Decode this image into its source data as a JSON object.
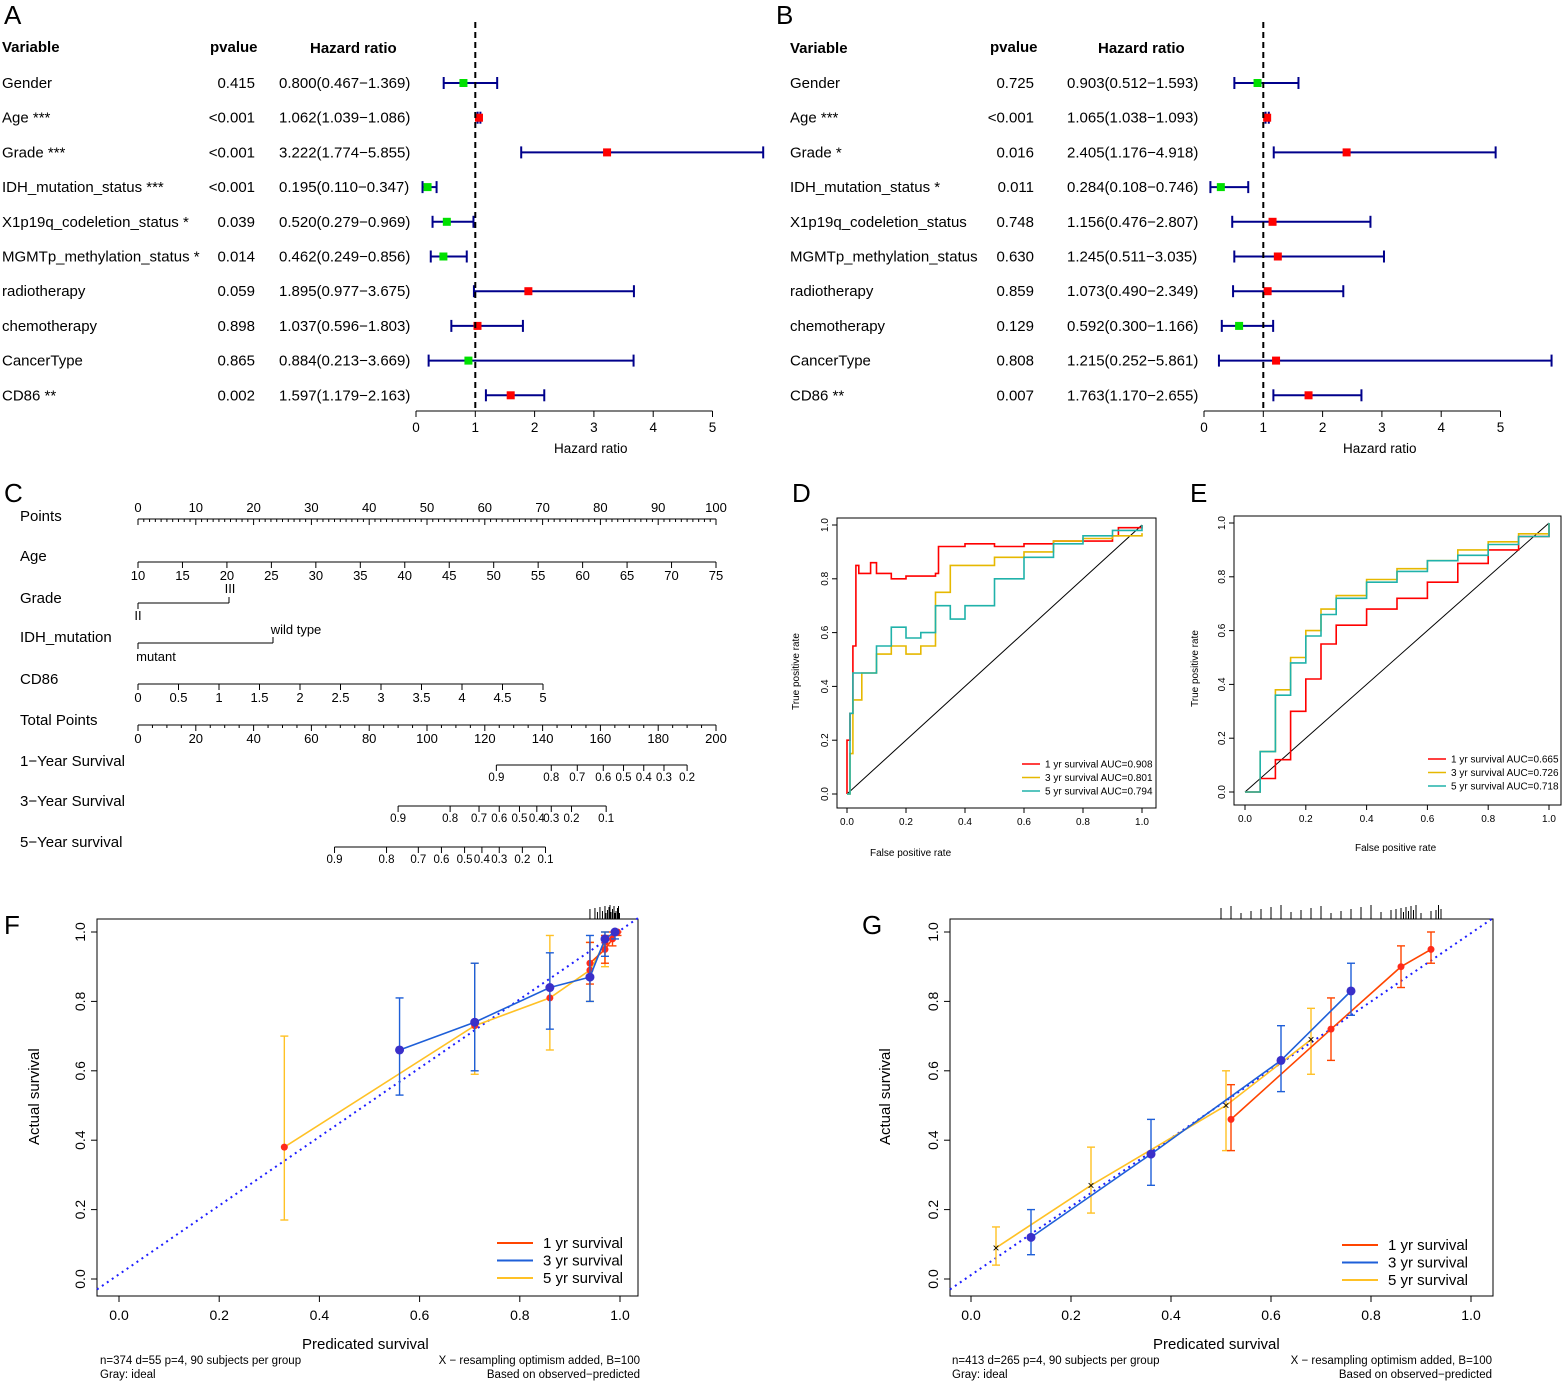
{
  "panels": {
    "A": {
      "letter": "A",
      "headers": [
        "Variable",
        "pvalue",
        "Hazard ratio"
      ],
      "xlabel": "Hazard ratio",
      "ticks": [
        0,
        1,
        2,
        3,
        4,
        5
      ],
      "rows": [
        {
          "name": "Gender",
          "p": "0.415",
          "hr_text": "0.800(0.467−1.369)",
          "hr": 0.8,
          "lo": 0.467,
          "hi": 1.369
        },
        {
          "name": "Age ***",
          "p": "<0.001",
          "hr_text": "1.062(1.039−1.086)",
          "hr": 1.062,
          "lo": 1.039,
          "hi": 1.086
        },
        {
          "name": "Grade ***",
          "p": "<0.001",
          "hr_text": "3.222(1.774−5.855)",
          "hr": 3.222,
          "lo": 1.774,
          "hi": 5.855
        },
        {
          "name": "IDH_mutation_status ***",
          "p": "<0.001",
          "hr_text": "0.195(0.110−0.347)",
          "hr": 0.195,
          "lo": 0.11,
          "hi": 0.347
        },
        {
          "name": "X1p19q_codeletion_status *",
          "p": "0.039",
          "hr_text": "0.520(0.279−0.969)",
          "hr": 0.52,
          "lo": 0.279,
          "hi": 0.969
        },
        {
          "name": "MGMTp_methylation_status *",
          "p": "0.014",
          "hr_text": "0.462(0.249−0.856)",
          "hr": 0.462,
          "lo": 0.249,
          "hi": 0.856
        },
        {
          "name": "radiotherapy",
          "p": "0.059",
          "hr_text": "1.895(0.977−3.675)",
          "hr": 1.895,
          "lo": 0.977,
          "hi": 3.675
        },
        {
          "name": "chemotherapy",
          "p": "0.898",
          "hr_text": "1.037(0.596−1.803)",
          "hr": 1.037,
          "lo": 0.596,
          "hi": 1.803
        },
        {
          "name": "CancerType",
          "p": "0.865",
          "hr_text": "0.884(0.213−3.669)",
          "hr": 0.884,
          "lo": 0.213,
          "hi": 3.669
        },
        {
          "name": "CD86 **",
          "p": "0.002",
          "hr_text": "1.597(1.179−2.163)",
          "hr": 1.597,
          "lo": 1.179,
          "hi": 2.163
        }
      ]
    },
    "B": {
      "letter": "B",
      "headers": [
        "Variable",
        "pvalue",
        "Hazard ratio"
      ],
      "xlabel": "Hazard ratio",
      "ticks": [
        0,
        1,
        2,
        3,
        4,
        5
      ],
      "rows": [
        {
          "name": "Gender",
          "p": "0.725",
          "hr_text": "0.903(0.512−1.593)",
          "hr": 0.903,
          "lo": 0.512,
          "hi": 1.593
        },
        {
          "name": "Age ***",
          "p": "<0.001",
          "hr_text": "1.065(1.038−1.093)",
          "hr": 1.065,
          "lo": 1.038,
          "hi": 1.093
        },
        {
          "name": "Grade *",
          "p": "0.016",
          "hr_text": "2.405(1.176−4.918)",
          "hr": 2.405,
          "lo": 1.176,
          "hi": 4.918
        },
        {
          "name": "IDH_mutation_status *",
          "p": "0.011",
          "hr_text": "0.284(0.108−0.746)",
          "hr": 0.284,
          "lo": 0.108,
          "hi": 0.746
        },
        {
          "name": "X1p19q_codeletion_status",
          "p": "0.748",
          "hr_text": "1.156(0.476−2.807)",
          "hr": 1.156,
          "lo": 0.476,
          "hi": 2.807
        },
        {
          "name": "MGMTp_methylation_status",
          "p": "0.630",
          "hr_text": "1.245(0.511−3.035)",
          "hr": 1.245,
          "lo": 0.511,
          "hi": 3.035
        },
        {
          "name": "radiotherapy",
          "p": "0.859",
          "hr_text": "1.073(0.490−2.349)",
          "hr": 1.073,
          "lo": 0.49,
          "hi": 2.349
        },
        {
          "name": "chemotherapy",
          "p": "0.129",
          "hr_text": "0.592(0.300−1.166)",
          "hr": 0.592,
          "lo": 0.3,
          "hi": 1.166
        },
        {
          "name": "CancerType",
          "p": "0.808",
          "hr_text": "1.215(0.252−5.861)",
          "hr": 1.215,
          "lo": 0.252,
          "hi": 5.861
        },
        {
          "name": "CD86 **",
          "p": "0.007",
          "hr_text": "1.763(1.170−2.655)",
          "hr": 1.763,
          "lo": 1.17,
          "hi": 2.655
        }
      ]
    },
    "C": {
      "letter": "C",
      "scales": [
        {
          "label": "Points",
          "ticks": [
            "0",
            "10",
            "20",
            "30",
            "40",
            "50",
            "60",
            "70",
            "80",
            "90",
            "100"
          ]
        },
        {
          "label": "Age",
          "ticks": [
            "10",
            "15",
            "20",
            "25",
            "30",
            "35",
            "40",
            "45",
            "50",
            "55",
            "60",
            "65",
            "70",
            "75"
          ]
        },
        {
          "label": "Grade",
          "ticks": [
            "II",
            "III"
          ]
        },
        {
          "label": "IDH_mutation",
          "ticks": [
            "mutant",
            "wild type"
          ]
        },
        {
          "label": "CD86",
          "ticks": [
            "0",
            "0.5",
            "1",
            "1.5",
            "2",
            "2.5",
            "3",
            "3.5",
            "4",
            "4.5",
            "5"
          ]
        },
        {
          "label": "Total Points",
          "ticks": [
            "0",
            "20",
            "40",
            "60",
            "80",
            "100",
            "120",
            "140",
            "160",
            "180",
            "200"
          ]
        },
        {
          "label": "1−Year Survival",
          "ticks": [
            "0.9",
            "0.8",
            "0.7",
            "0.6",
            "0.5",
            "0.4",
            "0.3",
            "0.2"
          ]
        },
        {
          "label": "3−Year Survival",
          "ticks": [
            "0.9",
            "0.8",
            "0.7",
            "0.6",
            "0.5",
            "0.4",
            "0.3",
            "0.2",
            "0.1"
          ]
        },
        {
          "label": "5−Year survival",
          "ticks": [
            "0.9",
            "0.8",
            "0.7",
            "0.6",
            "0.5",
            "0.4",
            "0.3",
            "0.2",
            "0.1"
          ]
        }
      ]
    },
    "D": {
      "letter": "D",
      "xlabel": "False positive rate",
      "ylabel": "True positive rate",
      "ticks": [
        "0.0",
        "0.2",
        "0.4",
        "0.6",
        "0.8",
        "1.0"
      ],
      "legend": [
        "1 yr survival AUC=0.908",
        "3 yr survival AUC=0.801",
        "5 yr survival AUC=0.794"
      ]
    },
    "E": {
      "letter": "E",
      "xlabel": "False positive rate",
      "ylabel": "True positive rate",
      "ticks": [
        "0.0",
        "0.2",
        "0.4",
        "0.6",
        "0.8",
        "1.0"
      ],
      "legend": [
        "1 yr survival AUC=0.665",
        "3 yr survival AUC=0.726",
        "5 yr survival AUC=0.718"
      ]
    },
    "F": {
      "letter": "F",
      "xlabel": "Predicated survival",
      "ylabel": "Actual survival",
      "ticks": [
        "0.0",
        "0.2",
        "0.4",
        "0.6",
        "0.8",
        "1.0"
      ],
      "legend": [
        "1 yr survival",
        "3 yr survival",
        "5 yr survival"
      ],
      "note_left_1": "n=374 d=55 p=4, 90 subjects per group",
      "note_left_2": "Gray: ideal",
      "note_right_1": "X − resampling optimism added, B=100",
      "note_right_2": "Based on observed−predicted"
    },
    "G": {
      "letter": "G",
      "xlabel": "Predicated survival",
      "ylabel": "Actual survival",
      "ticks": [
        "0.0",
        "0.2",
        "0.4",
        "0.6",
        "0.8",
        "1.0"
      ],
      "legend": [
        "1 yr survival",
        "3 yr survival",
        "5 yr survival"
      ],
      "note_left_1": "n=413 d=265 p=4, 90 subjects per group",
      "note_left_2": "Gray: ideal",
      "note_right_1": "X − resampling optimism added, B=100",
      "note_right_2": "Based on observed−predicted"
    }
  },
  "colors": {
    "ci_line": "#00008b",
    "risk_up": "#ff0000",
    "risk_down": "#00e000",
    "roc1": "#ff0000",
    "roc3": "#e6b800",
    "roc5": "#20b2aa",
    "cal1": "#ff4500",
    "cal3": "#1e5fd8",
    "cal5": "#ffc125",
    "ideal": "#1e1eff"
  },
  "chart_data": [
    {
      "type": "forest",
      "title": "A",
      "xlabel": "Hazard ratio",
      "xlim": [
        0,
        5
      ],
      "reference": 1,
      "series": [
        {
          "name": "Hazard ratio",
          "categories": [
            "Gender",
            "Age ***",
            "Grade ***",
            "IDH_mutation_status ***",
            "X1p19q_codeletion_status *",
            "MGMTp_methylation_status *",
            "radiotherapy",
            "chemotherapy",
            "CancerType",
            "CD86 **"
          ],
          "values": [
            0.8,
            1.062,
            3.222,
            0.195,
            0.52,
            0.462,
            1.895,
            1.037,
            0.884,
            1.597
          ],
          "lower": [
            0.467,
            1.039,
            1.774,
            0.11,
            0.279,
            0.249,
            0.977,
            0.596,
            0.213,
            1.179
          ],
          "upper": [
            1.369,
            1.086,
            5.855,
            0.347,
            0.969,
            0.856,
            3.675,
            1.803,
            3.669,
            2.163
          ]
        }
      ]
    },
    {
      "type": "forest",
      "title": "B",
      "xlabel": "Hazard ratio",
      "xlim": [
        0,
        5
      ],
      "reference": 1,
      "series": [
        {
          "name": "Hazard ratio",
          "categories": [
            "Gender",
            "Age ***",
            "Grade *",
            "IDH_mutation_status *",
            "X1p19q_codeletion_status",
            "MGMTp_methylation_status",
            "radiotherapy",
            "chemotherapy",
            "CancerType",
            "CD86 **"
          ],
          "values": [
            0.903,
            1.065,
            2.405,
            0.284,
            1.156,
            1.245,
            1.073,
            0.592,
            1.215,
            1.763
          ],
          "lower": [
            0.512,
            1.038,
            1.176,
            0.108,
            0.476,
            0.511,
            0.49,
            0.3,
            0.252,
            1.17
          ],
          "upper": [
            1.593,
            1.093,
            4.918,
            0.746,
            2.807,
            3.035,
            2.349,
            1.166,
            5.861,
            2.655
          ]
        }
      ]
    },
    {
      "type": "line",
      "title": "D",
      "xlabel": "False positive rate",
      "ylabel": "True positive rate",
      "xlim": [
        0,
        1
      ],
      "ylim": [
        0,
        1
      ],
      "series": [
        {
          "name": "1 yr survival AUC=0.908",
          "x": [
            0,
            0,
            0.01,
            0.02,
            0.03,
            0.04,
            0.08,
            0.1,
            0.15,
            0.2,
            0.25,
            0.3,
            0.31,
            0.4,
            0.5,
            0.6,
            0.7,
            0.8,
            0.9,
            0.92,
            1
          ],
          "y": [
            0,
            0.2,
            0.3,
            0.55,
            0.85,
            0.82,
            0.86,
            0.82,
            0.8,
            0.81,
            0.81,
            0.82,
            0.92,
            0.93,
            0.92,
            0.93,
            0.94,
            0.94,
            0.96,
            0.99,
            1
          ]
        },
        {
          "name": "3 yr survival AUC=0.801",
          "x": [
            0,
            0.01,
            0.02,
            0.05,
            0.1,
            0.15,
            0.2,
            0.25,
            0.3,
            0.35,
            0.4,
            0.5,
            0.6,
            0.7,
            0.8,
            0.9,
            1
          ],
          "y": [
            0,
            0.15,
            0.35,
            0.45,
            0.52,
            0.55,
            0.52,
            0.55,
            0.75,
            0.85,
            0.85,
            0.88,
            0.9,
            0.94,
            0.95,
            0.96,
            0.97
          ]
        },
        {
          "name": "5 yr survival AUC=0.794",
          "x": [
            0,
            0.01,
            0.02,
            0.05,
            0.1,
            0.15,
            0.2,
            0.25,
            0.3,
            0.35,
            0.4,
            0.5,
            0.6,
            0.7,
            0.8,
            0.9,
            1
          ],
          "y": [
            0,
            0.3,
            0.45,
            0.45,
            0.55,
            0.62,
            0.58,
            0.6,
            0.7,
            0.65,
            0.7,
            0.8,
            0.88,
            0.93,
            0.96,
            0.98,
            1
          ]
        }
      ]
    },
    {
      "type": "line",
      "title": "E",
      "xlabel": "False positive rate",
      "ylabel": "True positive rate",
      "xlim": [
        0,
        1
      ],
      "ylim": [
        0,
        1
      ],
      "series": [
        {
          "name": "1 yr survival AUC=0.665",
          "x": [
            0,
            0.05,
            0.1,
            0.15,
            0.2,
            0.25,
            0.3,
            0.4,
            0.5,
            0.6,
            0.7,
            0.8,
            0.9,
            1
          ],
          "y": [
            0,
            0.05,
            0.12,
            0.3,
            0.42,
            0.55,
            0.62,
            0.68,
            0.72,
            0.78,
            0.85,
            0.9,
            0.95,
            1
          ]
        },
        {
          "name": "3 yr survival AUC=0.726",
          "x": [
            0,
            0.05,
            0.1,
            0.15,
            0.2,
            0.25,
            0.3,
            0.4,
            0.5,
            0.6,
            0.7,
            0.8,
            0.9,
            1
          ],
          "y": [
            0,
            0.15,
            0.38,
            0.5,
            0.6,
            0.68,
            0.73,
            0.79,
            0.83,
            0.86,
            0.9,
            0.93,
            0.96,
            1
          ]
        },
        {
          "name": "5 yr survival AUC=0.718",
          "x": [
            0,
            0.05,
            0.1,
            0.15,
            0.2,
            0.25,
            0.3,
            0.4,
            0.5,
            0.6,
            0.7,
            0.8,
            0.9,
            1
          ],
          "y": [
            0,
            0.15,
            0.36,
            0.48,
            0.58,
            0.66,
            0.72,
            0.78,
            0.82,
            0.86,
            0.88,
            0.92,
            0.95,
            1
          ]
        }
      ]
    },
    {
      "type": "scatter",
      "title": "F",
      "xlabel": "Predicated survival",
      "ylabel": "Actual survival",
      "xlim": [
        0,
        1
      ],
      "ylim": [
        0,
        1
      ],
      "series": [
        {
          "name": "1 yr survival",
          "x": [
            0.94,
            0.97,
            0.985,
            0.995
          ],
          "y": [
            0.91,
            0.95,
            0.98,
            1.0
          ],
          "lower": [
            0.85,
            0.91,
            0.96,
            0.99
          ],
          "upper": [
            0.97,
            0.99,
            1.0,
            1.0
          ]
        },
        {
          "name": "3 yr survival",
          "x": [
            0.56,
            0.71,
            0.86,
            0.94,
            0.97,
            0.99
          ],
          "y": [
            0.66,
            0.74,
            0.84,
            0.87,
            0.98,
            1.0
          ],
          "lower": [
            0.53,
            0.6,
            0.72,
            0.8,
            0.93,
            0.98
          ],
          "upper": [
            0.81,
            0.91,
            0.94,
            0.99,
            1.0,
            1.0
          ]
        },
        {
          "name": "5 yr survival",
          "x": [
            0.33,
            0.71,
            0.86,
            0.94,
            0.97
          ],
          "y": [
            0.38,
            0.73,
            0.81,
            0.89,
            0.97
          ],
          "lower": [
            0.17,
            0.59,
            0.66,
            0.8,
            0.9
          ],
          "upper": [
            0.7,
            0.91,
            0.99,
            0.97,
            1.0
          ]
        }
      ]
    },
    {
      "type": "scatter",
      "title": "G",
      "xlabel": "Predicated survival",
      "ylabel": "Actual survival",
      "xlim": [
        0,
        1
      ],
      "ylim": [
        0,
        1
      ],
      "series": [
        {
          "name": "1 yr survival",
          "x": [
            0.52,
            0.72,
            0.86,
            0.92
          ],
          "y": [
            0.46,
            0.72,
            0.9,
            0.95
          ],
          "lower": [
            0.37,
            0.63,
            0.84,
            0.91
          ],
          "upper": [
            0.56,
            0.81,
            0.96,
            1.0
          ]
        },
        {
          "name": "3 yr survival",
          "x": [
            0.12,
            0.36,
            0.62,
            0.76
          ],
          "y": [
            0.12,
            0.36,
            0.63,
            0.83
          ],
          "lower": [
            0.07,
            0.27,
            0.54,
            0.76
          ],
          "upper": [
            0.2,
            0.46,
            0.73,
            0.91
          ]
        },
        {
          "name": "5 yr survival",
          "x": [
            0.05,
            0.24,
            0.51,
            0.68
          ],
          "y": [
            0.09,
            0.27,
            0.5,
            0.69
          ],
          "lower": [
            0.04,
            0.19,
            0.37,
            0.59
          ],
          "upper": [
            0.15,
            0.38,
            0.6,
            0.78
          ]
        }
      ]
    }
  ]
}
